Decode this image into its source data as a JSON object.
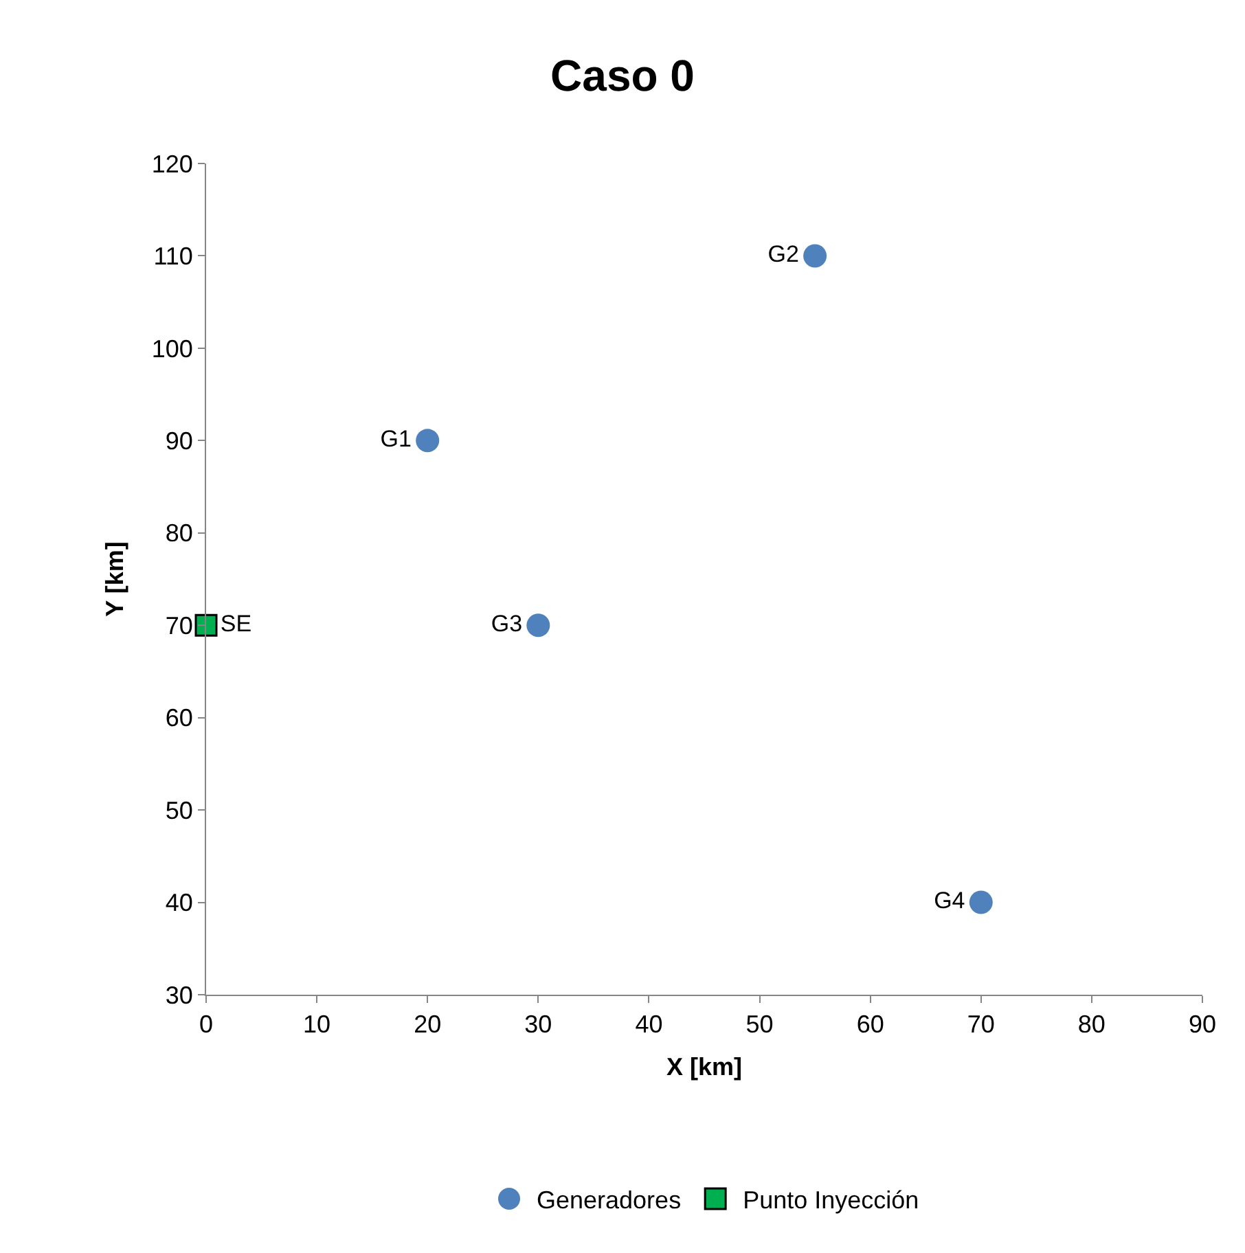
{
  "chart_data": {
    "type": "scatter",
    "title": "Caso 0",
    "xlabel": "X [km]",
    "ylabel": "Y [km]",
    "series": [
      {
        "name": "Generadores",
        "color": "#4f81bd",
        "marker": "circle",
        "x": [
          20,
          55,
          30,
          70
        ],
        "values": [
          90,
          110,
          70,
          40
        ],
        "value_labels": [
          "G1",
          "G2",
          "G3",
          "G4"
        ]
      },
      {
        "name": "Punto Inyección",
        "color": "#00b050",
        "marker": "square",
        "x": [
          0
        ],
        "values": [
          70
        ],
        "value_labels": [
          "SE"
        ]
      }
    ],
    "xlim": [
      0,
      90
    ],
    "xticks": [
      0,
      10,
      20,
      30,
      40,
      50,
      60,
      70,
      80,
      90
    ],
    "ylim": [
      30,
      120
    ],
    "yticks": [
      30,
      40,
      50,
      60,
      70,
      80,
      90,
      100,
      110,
      120
    ],
    "grid": false,
    "legend": "bottom"
  }
}
